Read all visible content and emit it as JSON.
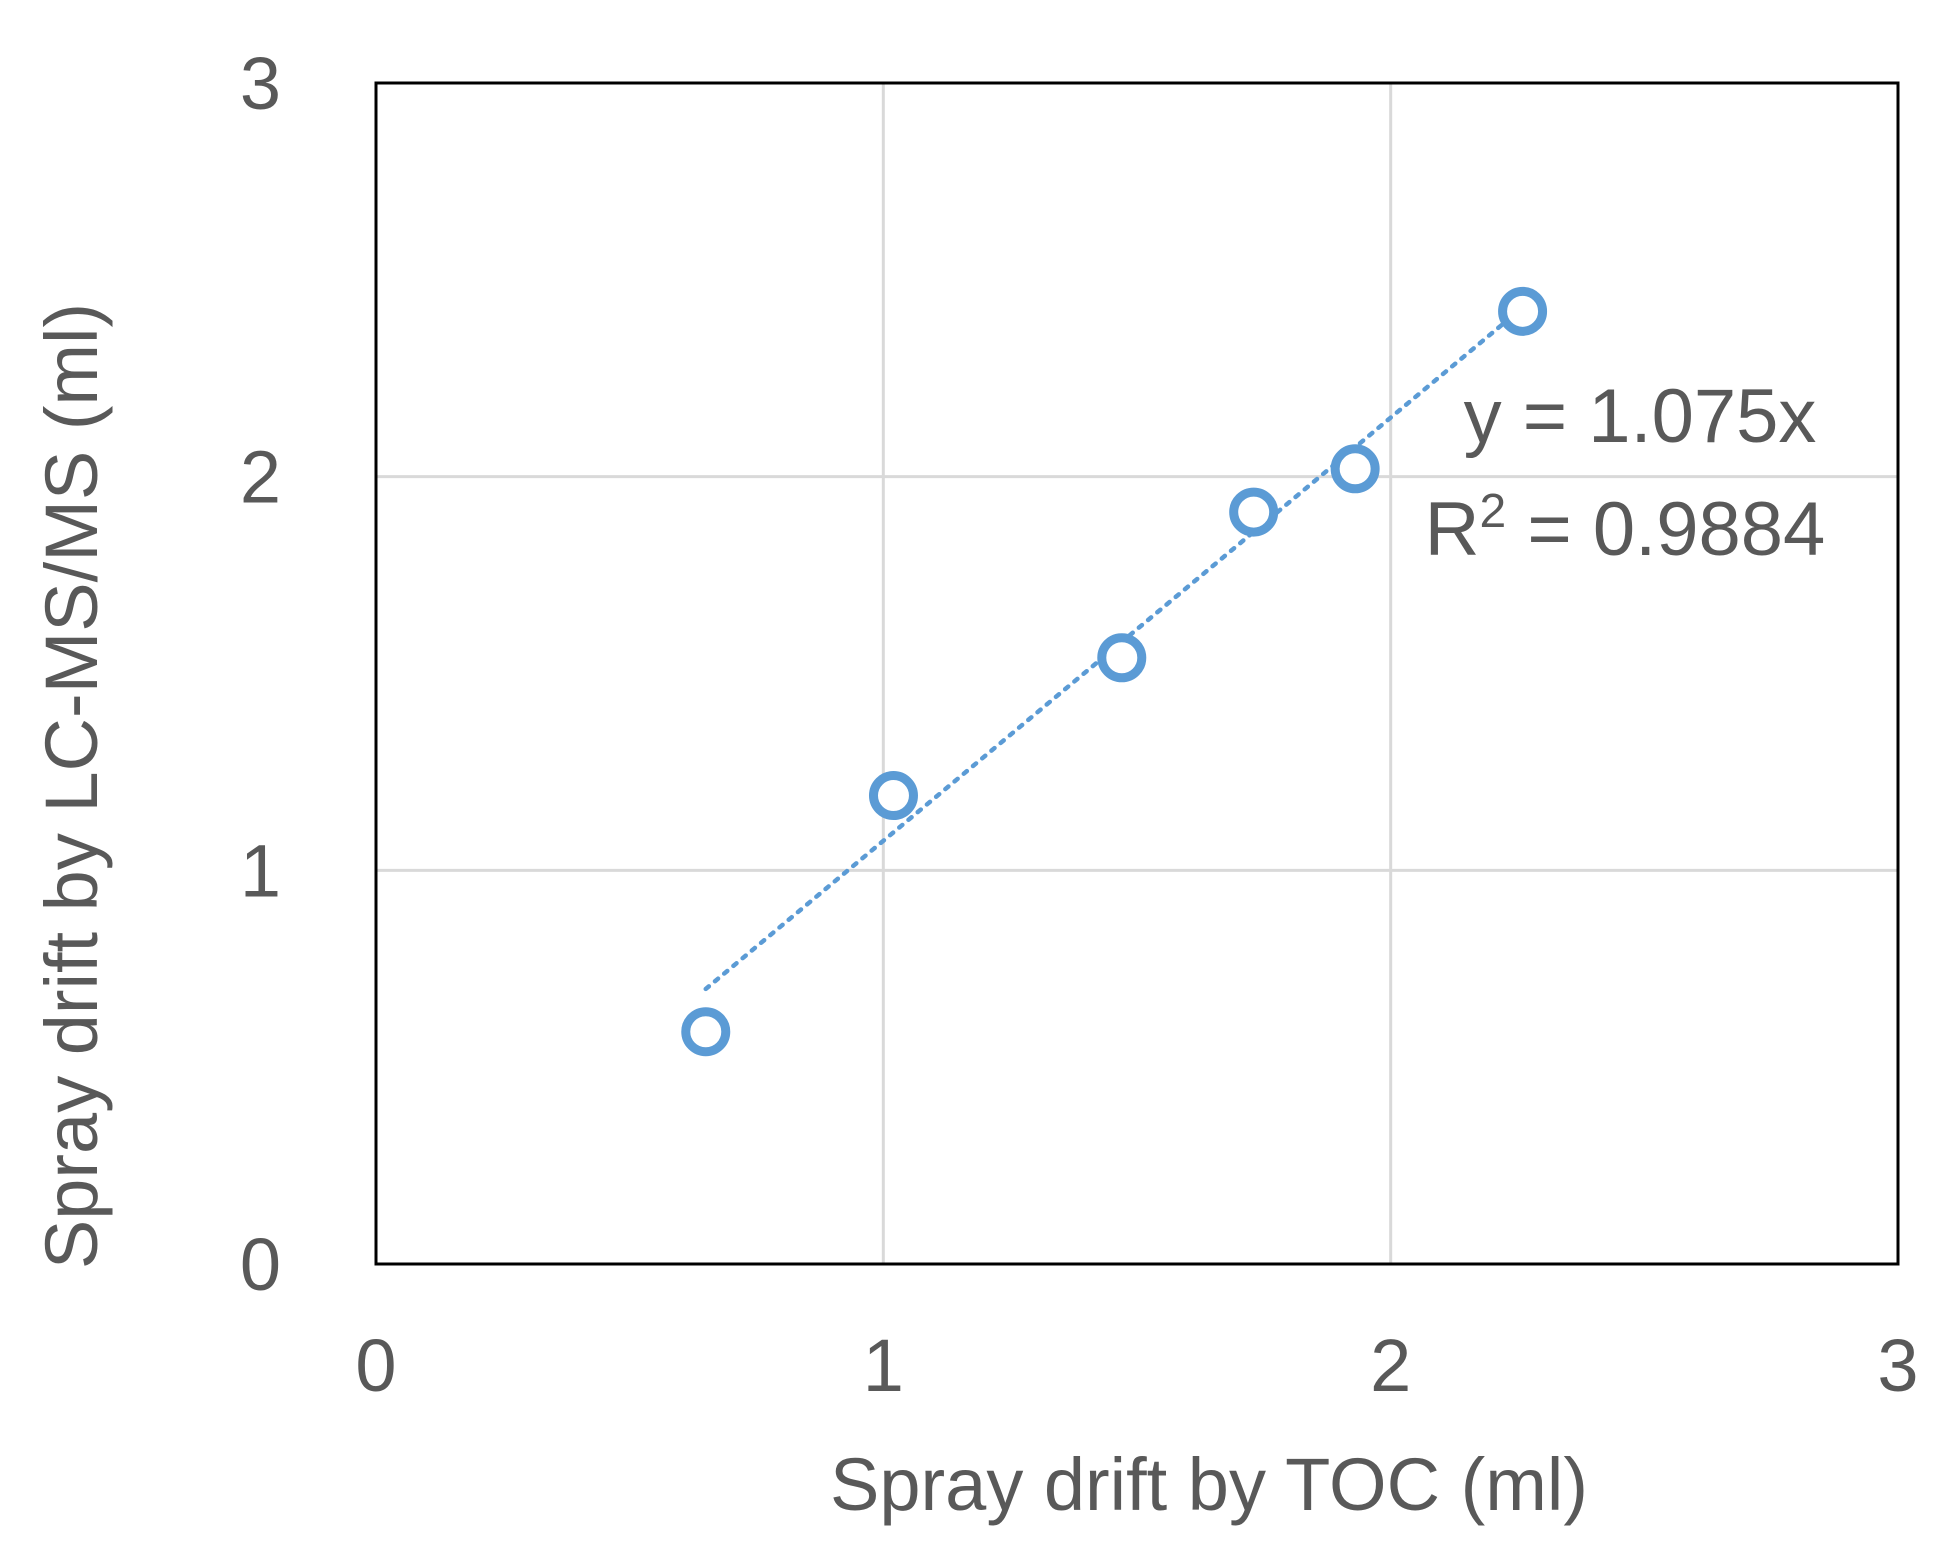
{
  "chart_data": {
    "type": "scatter",
    "title": "",
    "xlabel": "Spray drift by TOC (ml)",
    "ylabel": "Spray drift by LC-MS/MS (ml)",
    "xlim": [
      0,
      3
    ],
    "ylim": [
      0,
      3
    ],
    "x_ticks": [
      "0",
      "1",
      "2",
      "3"
    ],
    "y_ticks": [
      "0",
      "1",
      "2",
      "3"
    ],
    "grid": true,
    "legend": "none",
    "series": [
      {
        "points": [
          {
            "x": 0.65,
            "y": 0.59
          },
          {
            "x": 1.02,
            "y": 1.19
          },
          {
            "x": 1.47,
            "y": 1.54
          },
          {
            "x": 1.73,
            "y": 1.91
          },
          {
            "x": 1.93,
            "y": 2.02
          },
          {
            "x": 2.26,
            "y": 2.42
          }
        ],
        "color": "#5B9BD5",
        "marker": "open-circle"
      }
    ],
    "trendline": {
      "slope": 1.075,
      "x_range": [
        0.65,
        2.26
      ],
      "color": "#5B9BD5",
      "style": "dotted",
      "equation": "y = 1.075x",
      "r2_prefix": "R",
      "r2_sup": "2",
      "r2_rest": " = 0.9884"
    },
    "colors": {
      "grid": "#D9D9D9",
      "frame": "#000000",
      "text": "#595959"
    }
  }
}
